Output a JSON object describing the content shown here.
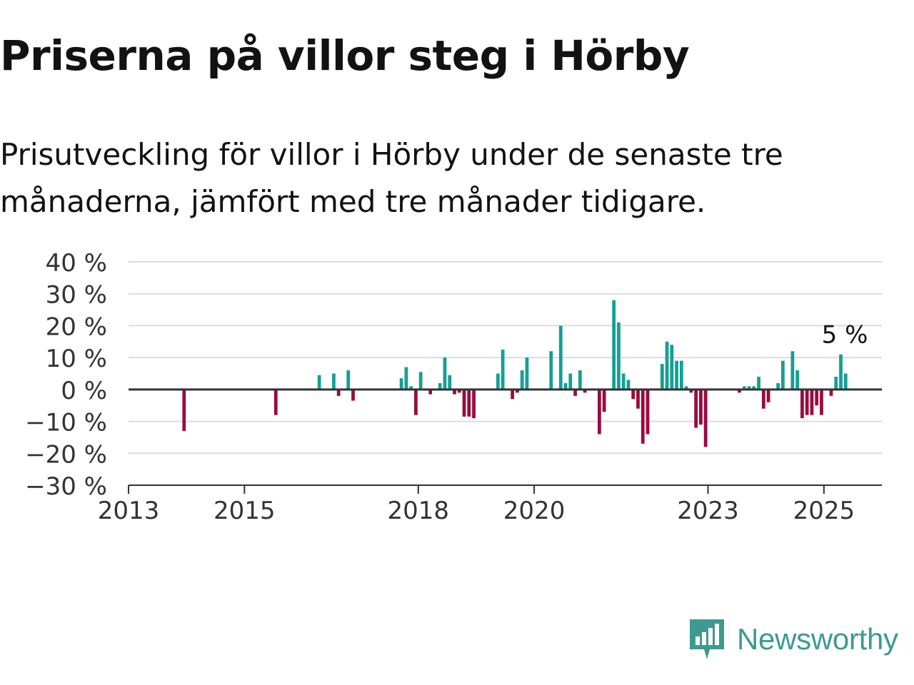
{
  "title": "Priserna på villor steg i Hörby",
  "subtitle": "Prisutveckling för villor i Hörby under de senaste tre månaderna, jämfört med tre månader tidigare.",
  "brand": {
    "name": "Newsworthy",
    "color": "#3d9a91",
    "icon": "newsworthy-logo-icon"
  },
  "colors": {
    "positive": "#13a094",
    "negative": "#9c0a3f",
    "grid": "#dcdcdc",
    "axis": "#333333"
  },
  "chart_data": {
    "type": "bar",
    "title": "Priserna på villor steg i Hörby",
    "subtitle": "Prisutveckling för villor i Hörby under de senaste tre månaderna, jämfört med tre månader tidigare.",
    "xlabel": "",
    "ylabel": "",
    "ylim": [
      -30,
      40
    ],
    "xlim": [
      "2013-01",
      "2025-12"
    ],
    "yticks": [
      40,
      30,
      20,
      10,
      0,
      -10,
      -20,
      -30
    ],
    "ytick_labels": [
      "40 %",
      "30 %",
      "20 %",
      "10 %",
      "0 %",
      "−10 %",
      "−20 %",
      "−30 %"
    ],
    "xticks": [
      "2013-01",
      "2015-01",
      "2018-01",
      "2020-01",
      "2023-01",
      "2025-01"
    ],
    "xtick_labels": [
      "2013",
      "2015",
      "2018",
      "2020",
      "2023",
      "2025"
    ],
    "grid": true,
    "annotation": {
      "label": "5 %",
      "x": "2025-05",
      "y": 5
    },
    "series": [
      {
        "values": [
          {
            "x": "2013-12",
            "y": -13
          },
          {
            "x": "2015-07",
            "y": -8
          },
          {
            "x": "2016-04",
            "y": 4.5
          },
          {
            "x": "2016-07",
            "y": 5
          },
          {
            "x": "2016-08",
            "y": -2
          },
          {
            "x": "2016-10",
            "y": 6
          },
          {
            "x": "2016-11",
            "y": -3.5
          },
          {
            "x": "2017-09",
            "y": 3.5
          },
          {
            "x": "2017-10",
            "y": 7
          },
          {
            "x": "2017-11",
            "y": 1
          },
          {
            "x": "2017-12",
            "y": -8
          },
          {
            "x": "2018-01",
            "y": 5.5
          },
          {
            "x": "2018-02",
            "y": 0
          },
          {
            "x": "2018-03",
            "y": -1.5
          },
          {
            "x": "2018-05",
            "y": 2
          },
          {
            "x": "2018-06",
            "y": 10
          },
          {
            "x": "2018-07",
            "y": 4.5
          },
          {
            "x": "2018-08",
            "y": -1.5
          },
          {
            "x": "2018-09",
            "y": -1
          },
          {
            "x": "2018-10",
            "y": -8.5
          },
          {
            "x": "2018-11",
            "y": -8.5
          },
          {
            "x": "2018-12",
            "y": -9
          },
          {
            "x": "2019-05",
            "y": 5
          },
          {
            "x": "2019-06",
            "y": 12.5
          },
          {
            "x": "2019-08",
            "y": -3
          },
          {
            "x": "2019-09",
            "y": -1
          },
          {
            "x": "2019-10",
            "y": 6
          },
          {
            "x": "2019-11",
            "y": 10
          },
          {
            "x": "2020-04",
            "y": 12
          },
          {
            "x": "2020-06",
            "y": 20
          },
          {
            "x": "2020-07",
            "y": 2
          },
          {
            "x": "2020-08",
            "y": 5
          },
          {
            "x": "2020-09",
            "y": -2
          },
          {
            "x": "2020-10",
            "y": 6
          },
          {
            "x": "2020-11",
            "y": -1
          },
          {
            "x": "2021-02",
            "y": -14
          },
          {
            "x": "2021-03",
            "y": -7
          },
          {
            "x": "2021-05",
            "y": 28
          },
          {
            "x": "2021-06",
            "y": 21
          },
          {
            "x": "2021-07",
            "y": 5
          },
          {
            "x": "2021-08",
            "y": 3
          },
          {
            "x": "2021-09",
            "y": -3
          },
          {
            "x": "2021-10",
            "y": -6
          },
          {
            "x": "2021-11",
            "y": -17
          },
          {
            "x": "2021-12",
            "y": -14
          },
          {
            "x": "2022-03",
            "y": 8
          },
          {
            "x": "2022-04",
            "y": 15
          },
          {
            "x": "2022-05",
            "y": 14
          },
          {
            "x": "2022-06",
            "y": 9
          },
          {
            "x": "2022-07",
            "y": 9
          },
          {
            "x": "2022-08",
            "y": 1
          },
          {
            "x": "2022-09",
            "y": -1
          },
          {
            "x": "2022-10",
            "y": -12
          },
          {
            "x": "2022-11",
            "y": -11
          },
          {
            "x": "2022-12",
            "y": -18
          },
          {
            "x": "2023-07",
            "y": -1
          },
          {
            "x": "2023-08",
            "y": 1
          },
          {
            "x": "2023-09",
            "y": 1
          },
          {
            "x": "2023-10",
            "y": 1
          },
          {
            "x": "2023-11",
            "y": 4
          },
          {
            "x": "2023-12",
            "y": -6
          },
          {
            "x": "2024-01",
            "y": -4
          },
          {
            "x": "2024-03",
            "y": 2
          },
          {
            "x": "2024-04",
            "y": 9
          },
          {
            "x": "2024-06",
            "y": 12
          },
          {
            "x": "2024-07",
            "y": 6
          },
          {
            "x": "2024-08",
            "y": -9
          },
          {
            "x": "2024-09",
            "y": -8
          },
          {
            "x": "2024-10",
            "y": -8
          },
          {
            "x": "2024-11",
            "y": -5
          },
          {
            "x": "2024-12",
            "y": -8
          },
          {
            "x": "2025-02",
            "y": -2
          },
          {
            "x": "2025-03",
            "y": 4
          },
          {
            "x": "2025-04",
            "y": 11
          },
          {
            "x": "2025-05",
            "y": 5
          }
        ]
      }
    ]
  }
}
